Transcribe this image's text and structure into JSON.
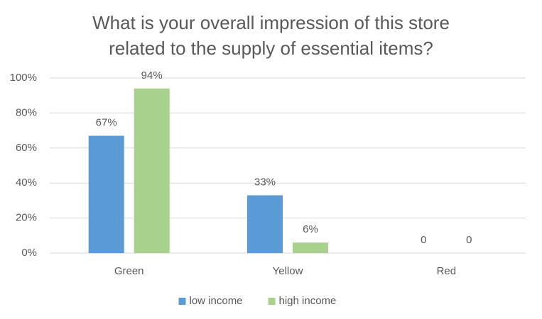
{
  "chart_data": {
    "type": "bar",
    "title": "What is your overall impression of this store related to the supply of essential items?",
    "categories": [
      "Green",
      "Yellow",
      "Red"
    ],
    "series": [
      {
        "name": "low income",
        "color": "#5b9bd5",
        "values": [
          67,
          33,
          0
        ],
        "value_labels": [
          "67%",
          "33%",
          "0"
        ]
      },
      {
        "name": "high income",
        "color": "#a9d18e",
        "values": [
          94,
          6,
          0
        ],
        "value_labels": [
          "94%",
          "6%",
          "0"
        ]
      }
    ],
    "ylim": [
      0,
      100
    ],
    "yticks": [
      {
        "value": 0,
        "label": "0%"
      },
      {
        "value": 20,
        "label": "20%"
      },
      {
        "value": 40,
        "label": "40%"
      },
      {
        "value": 60,
        "label": "60%"
      },
      {
        "value": 80,
        "label": "80%"
      },
      {
        "value": 100,
        "label": "100%"
      }
    ],
    "grid": true,
    "legend": "bottom"
  }
}
